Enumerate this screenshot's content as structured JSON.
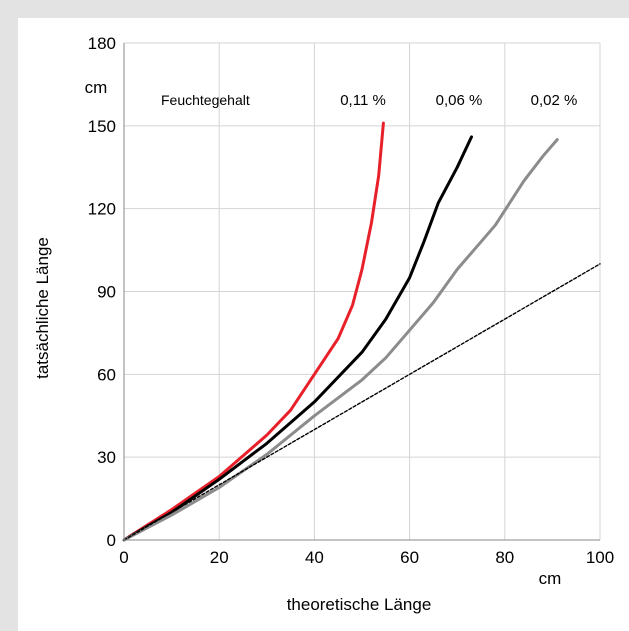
{
  "chart_data": {
    "type": "line",
    "title": "",
    "xlabel": "theoretische Länge",
    "ylabel": "tatsächliche Länge",
    "x_unit": "cm",
    "y_unit": "cm",
    "xlim": [
      0,
      100
    ],
    "ylim": [
      0,
      180
    ],
    "x_ticks": [
      0,
      20,
      40,
      60,
      80,
      100
    ],
    "y_ticks": [
      0,
      30,
      60,
      90,
      120,
      150,
      180
    ],
    "grid": true,
    "legend_title": "Feuchtegehalt",
    "series": [
      {
        "name": "0,11 %",
        "color": "#e8202a",
        "style": "solid",
        "points": [
          [
            0,
            0
          ],
          [
            10,
            11
          ],
          [
            20,
            23
          ],
          [
            30,
            38
          ],
          [
            35,
            47
          ],
          [
            40,
            60
          ],
          [
            45,
            73
          ],
          [
            48,
            85
          ],
          [
            50,
            98
          ],
          [
            52,
            115
          ],
          [
            53.5,
            132
          ],
          [
            54.5,
            151
          ]
        ]
      },
      {
        "name": "0,06 %",
        "color": "#000000",
        "style": "solid",
        "points": [
          [
            0,
            0
          ],
          [
            10,
            10
          ],
          [
            20,
            22
          ],
          [
            30,
            35
          ],
          [
            40,
            50
          ],
          [
            50,
            68
          ],
          [
            55,
            80
          ],
          [
            60,
            95
          ],
          [
            63,
            108
          ],
          [
            66,
            122
          ],
          [
            70,
            135
          ],
          [
            73,
            146
          ]
        ]
      },
      {
        "name": "0,02 %",
        "color": "#8c8c8c",
        "style": "solid",
        "points": [
          [
            0,
            0
          ],
          [
            10,
            9
          ],
          [
            20,
            19
          ],
          [
            30,
            31
          ],
          [
            40,
            45
          ],
          [
            50,
            58
          ],
          [
            55,
            66
          ],
          [
            60,
            76
          ],
          [
            65,
            86
          ],
          [
            70,
            98
          ],
          [
            75,
            108
          ],
          [
            78,
            114
          ],
          [
            81,
            122
          ],
          [
            84,
            130
          ],
          [
            88,
            139
          ],
          [
            91,
            145
          ]
        ]
      },
      {
        "name": "",
        "color": "#000000",
        "style": "dashed",
        "points": [
          [
            0,
            0
          ],
          [
            100,
            100
          ]
        ]
      }
    ]
  }
}
